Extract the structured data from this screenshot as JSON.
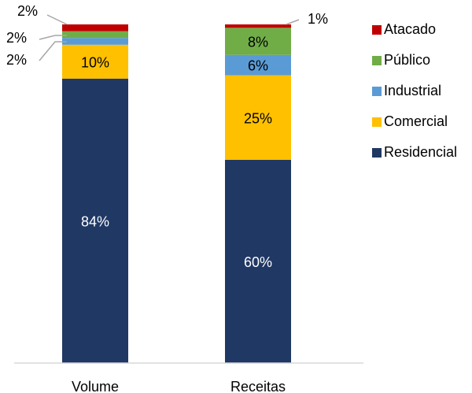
{
  "chart_data": {
    "type": "bar",
    "stacked": true,
    "categories": [
      "Volume",
      "Receitas"
    ],
    "series": [
      {
        "name": "Residencial",
        "color": "#203864",
        "values": [
          84,
          60
        ],
        "labels": [
          "84%",
          "60%"
        ]
      },
      {
        "name": "Comercial",
        "color": "#FFC000",
        "values": [
          10,
          25
        ],
        "labels": [
          "10%",
          "25%"
        ]
      },
      {
        "name": "Industrial",
        "color": "#5B9BD5",
        "values": [
          2,
          6
        ],
        "labels": [
          "2%",
          "6%"
        ]
      },
      {
        "name": "Público",
        "color": "#70AD47",
        "values": [
          2,
          8
        ],
        "labels": [
          "2%",
          "8%"
        ]
      },
      {
        "name": "Atacado",
        "color": "#C00000",
        "values": [
          2,
          1
        ],
        "labels": [
          "2%",
          "1%"
        ]
      }
    ],
    "ylim": [
      0,
      100
    ],
    "grid": false,
    "legend_position": "right",
    "legend_order": [
      "Atacado",
      "Público",
      "Industrial",
      "Comercial",
      "Residencial"
    ]
  }
}
